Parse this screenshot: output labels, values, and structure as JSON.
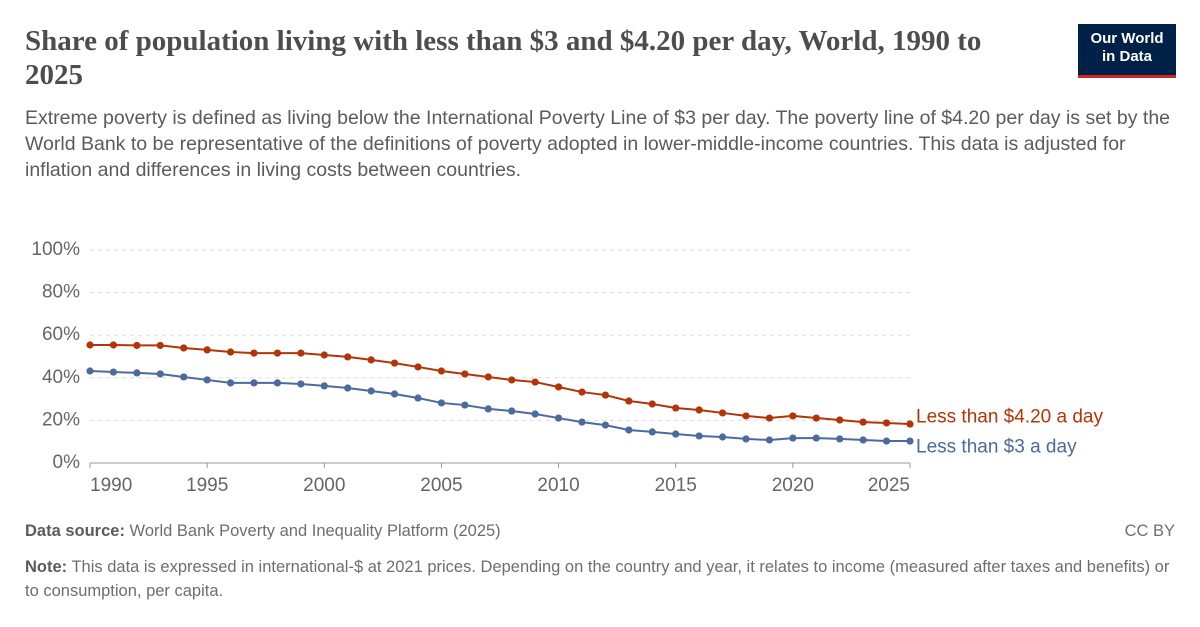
{
  "logo": [
    "Our World",
    "in Data"
  ],
  "chart_data": {
    "type": "line",
    "title": "Share of population living with less than $3 and $4.20 per day, World, 1990 to 2025",
    "subtitle": "Extreme poverty is defined as living below the International Poverty Line of $3 per day. The poverty line of $4.20 per day is set by the World Bank to be representative of the definitions of poverty adopted in lower-middle-income countries. This data is adjusted for inflation and differences in living costs between countries.",
    "x": [
      1990,
      1991,
      1992,
      1993,
      1994,
      1995,
      1996,
      1997,
      1998,
      1999,
      2000,
      2001,
      2002,
      2003,
      2004,
      2005,
      2006,
      2007,
      2008,
      2009,
      2010,
      2011,
      2012,
      2013,
      2014,
      2015,
      2016,
      2017,
      2018,
      2019,
      2020,
      2021,
      2022,
      2023,
      2024,
      2025
    ],
    "series": [
      {
        "name": "Less than $4.20 a day",
        "color": "#b13507",
        "values": [
          55.4,
          55.4,
          55.2,
          55.2,
          54.0,
          53.1,
          52.1,
          51.6,
          51.6,
          51.6,
          50.7,
          49.8,
          48.4,
          46.9,
          45.1,
          43.2,
          41.8,
          40.4,
          39.0,
          38.0,
          35.7,
          33.3,
          31.9,
          29.1,
          27.7,
          25.8,
          24.9,
          23.5,
          22.1,
          21.1,
          22.1,
          21.1,
          20.2,
          19.2,
          18.8,
          18.3
        ]
      },
      {
        "name": "Less than $3 a day",
        "color": "#4c6a9c",
        "values": [
          43.2,
          42.7,
          42.3,
          41.8,
          40.4,
          39.0,
          37.6,
          37.6,
          37.6,
          37.1,
          36.2,
          35.2,
          33.8,
          32.4,
          30.5,
          28.2,
          27.2,
          25.4,
          24.4,
          23.0,
          21.1,
          19.2,
          17.8,
          15.5,
          14.6,
          13.6,
          12.7,
          12.2,
          11.3,
          10.8,
          11.7,
          11.7,
          11.3,
          10.8,
          10.3,
          10.3
        ]
      }
    ],
    "xlim": [
      1990,
      2025
    ],
    "xticks": [
      1990,
      1995,
      2000,
      2005,
      2010,
      2015,
      2020,
      2025
    ],
    "ylim": [
      0,
      100
    ],
    "yticks": [
      {
        "value": 0,
        "label": "0%"
      },
      {
        "value": 20,
        "label": "20%"
      },
      {
        "value": 40,
        "label": "40%"
      },
      {
        "value": 60,
        "label": "60%"
      },
      {
        "value": 80,
        "label": "80%"
      },
      {
        "value": 100,
        "label": "100%"
      }
    ],
    "grid": true,
    "source_label": "Data source:",
    "source": "World Bank Poverty and Inequality Platform (2025)",
    "license": "CC BY",
    "note_label": "Note:",
    "note": "This data is expressed in international-$ at 2021 prices. Depending on the country and year, it relates to income (measured after taxes and benefits) or to consumption, per capita."
  }
}
